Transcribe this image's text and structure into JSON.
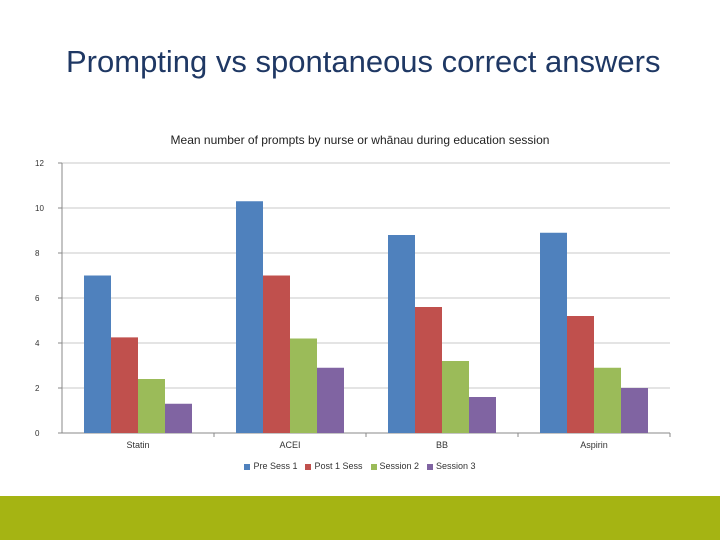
{
  "slide": {
    "title": "Prompting vs spontaneous correct answers"
  },
  "chart_data": {
    "type": "bar",
    "title": "Mean number of prompts by nurse or whānau during education session",
    "categories": [
      "Statin",
      "ACEI",
      "BB",
      "Aspirin"
    ],
    "series": [
      {
        "name": "Pre Sess 1",
        "color": "#4f81bd",
        "values": [
          7.0,
          10.3,
          8.8,
          8.9
        ]
      },
      {
        "name": "Post 1 Sess",
        "color": "#c0504d",
        "values": [
          4.25,
          7.0,
          5.6,
          5.2
        ]
      },
      {
        "name": "Session 2",
        "color": "#9bbb59",
        "values": [
          2.4,
          4.2,
          3.2,
          2.9
        ]
      },
      {
        "name": "Session 3",
        "color": "#8064a2",
        "values": [
          1.3,
          2.9,
          1.6,
          2.0
        ]
      }
    ],
    "ylim": [
      0,
      12
    ],
    "yticks": [
      0,
      2,
      4,
      6,
      8,
      10,
      12
    ],
    "grid": true,
    "legend": "bottom"
  }
}
